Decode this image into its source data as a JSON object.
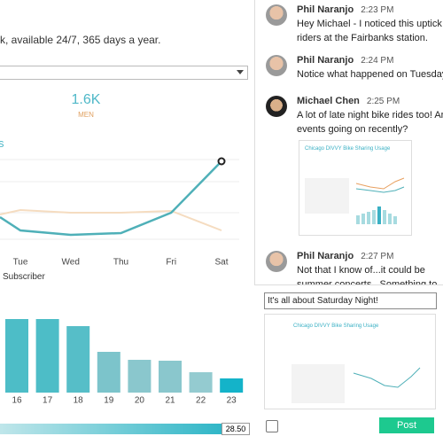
{
  "dashboard": {
    "subtitle": "k, available 24/7, 365 days a year.",
    "kpi": {
      "value": "1.6K",
      "label": "MEN"
    },
    "fragment": "s",
    "line_chart": {
      "type": "line",
      "categories": [
        null,
        "Tue",
        "Wed",
        "Thu",
        "Fri",
        "Sat"
      ],
      "ylim": [
        0,
        110
      ],
      "series": [
        {
          "color": "#4fb0b8",
          "values": [
            40,
            25,
            20,
            22,
            45,
            103
          ]
        },
        {
          "color": "#f5dcc0",
          "values": [
            43,
            48,
            45,
            45,
            47,
            25
          ]
        }
      ]
    },
    "bar_legend": "Subscriber",
    "bar_chart": {
      "type": "bar",
      "categories": [
        "16",
        "17",
        "18",
        "19",
        "20",
        "21",
        "22",
        "23"
      ],
      "values": [
        83,
        83,
        75,
        46,
        37,
        36,
        23,
        16
      ],
      "ylim": [
        0,
        100
      ],
      "colors": [
        "#4dbdc7",
        "#4dbdc7",
        "#56bec8",
        "#7cc4cb",
        "#8ac7cd",
        "#8ac7cd",
        "#94cbd0",
        "#14b3c9"
      ]
    },
    "slider_value": "28.50"
  },
  "chat": {
    "messages": [
      {
        "author": "Phil Naranjo",
        "time": "2:23 PM",
        "lines": [
          "Hey Michael - I noticed this uptick in",
          "riders at the Fairbanks station."
        ]
      },
      {
        "author": "Phil Naranjo",
        "time": "2:24 PM",
        "lines": [
          "Notice what happened on Tuesdays"
        ]
      },
      {
        "author": "Michael Chen",
        "time": "2:25 PM",
        "lines": [
          "A lot of late night bike rides too! Any",
          "events going on recently?"
        ]
      },
      {
        "author": "Phil Naranjo",
        "time": "2:27 PM",
        "lines": [
          "Not that I know of...it could be",
          "summer concerts.  Something to"
        ]
      }
    ],
    "thumbnail_title": "Chicago DIVVY Bike Sharing Usage",
    "input": "It's all about Saturday Night!",
    "post_button": "Post"
  }
}
